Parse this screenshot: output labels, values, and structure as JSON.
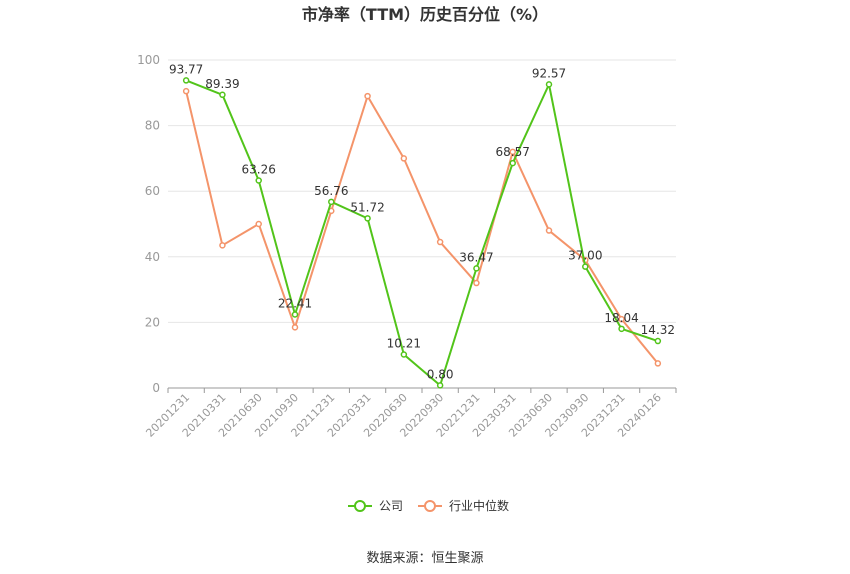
{
  "chart_data": {
    "type": "line",
    "title": "市净率（TTM）历史百分位（%）",
    "categories": [
      "20201231",
      "20210331",
      "20210630",
      "20210930",
      "20211231",
      "20220331",
      "20220630",
      "20220930",
      "20221231",
      "20230331",
      "20230630",
      "20230930",
      "20231231",
      "20240126"
    ],
    "series": [
      {
        "name": "公司",
        "color": "#52c41a",
        "values": [
          93.77,
          89.39,
          63.26,
          22.41,
          56.76,
          51.72,
          10.21,
          0.8,
          36.47,
          68.57,
          92.57,
          37.0,
          18.04,
          14.32
        ],
        "labels": [
          "93.77",
          "89.39",
          "63.26",
          "22.41",
          "56.76",
          "51.72",
          "10.21",
          "0.80",
          "36.47",
          "68.57",
          "92.57",
          "37.00",
          "18.04",
          "14.32"
        ]
      },
      {
        "name": "行业中位数",
        "color": "#f4946a",
        "values": [
          90.5,
          43.5,
          50,
          18.5,
          54,
          89,
          70,
          44.5,
          32,
          72,
          48,
          39,
          21,
          7.5
        ]
      }
    ],
    "ylim": [
      0,
      100
    ],
    "yticks": [
      0,
      20,
      40,
      60,
      80,
      100
    ],
    "grid": true,
    "legend": "bottom"
  },
  "source": "数据来源：恒生聚源"
}
